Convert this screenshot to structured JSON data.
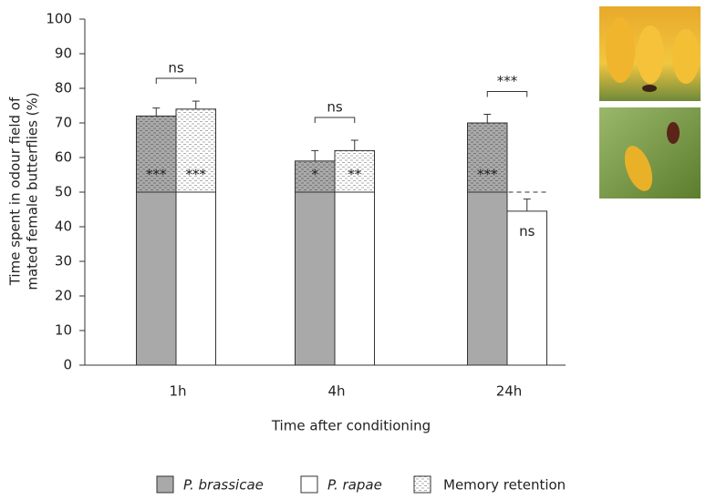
{
  "chart_data": {
    "type": "bar",
    "y_label": [
      "Time spent in odour field of",
      "mated female butterflies (%)"
    ],
    "x_label": "Time after conditioning",
    "categories": [
      "1h",
      "4h",
      "24h"
    ],
    "series": [
      {
        "name": "P. brassicae",
        "color": "#a9a9a9",
        "values": [
          72,
          59,
          70
        ],
        "errors": [
          2.3,
          3,
          2.5
        ],
        "significance": [
          "***",
          "*",
          "***"
        ]
      },
      {
        "name": "P. rapae",
        "color": "#ffffff",
        "values": [
          74,
          62,
          44.5
        ],
        "errors": [
          2.3,
          3,
          3.5
        ],
        "significance": [
          "***",
          "**",
          "ns"
        ]
      }
    ],
    "group_significance": [
      "ns",
      "ns",
      "***"
    ],
    "retention_label": "Memory retention",
    "reference_line": 50,
    "ylim": [
      0,
      100
    ],
    "yticks": [
      0,
      10,
      20,
      30,
      40,
      50,
      60,
      70,
      80,
      90,
      100
    ]
  }
}
